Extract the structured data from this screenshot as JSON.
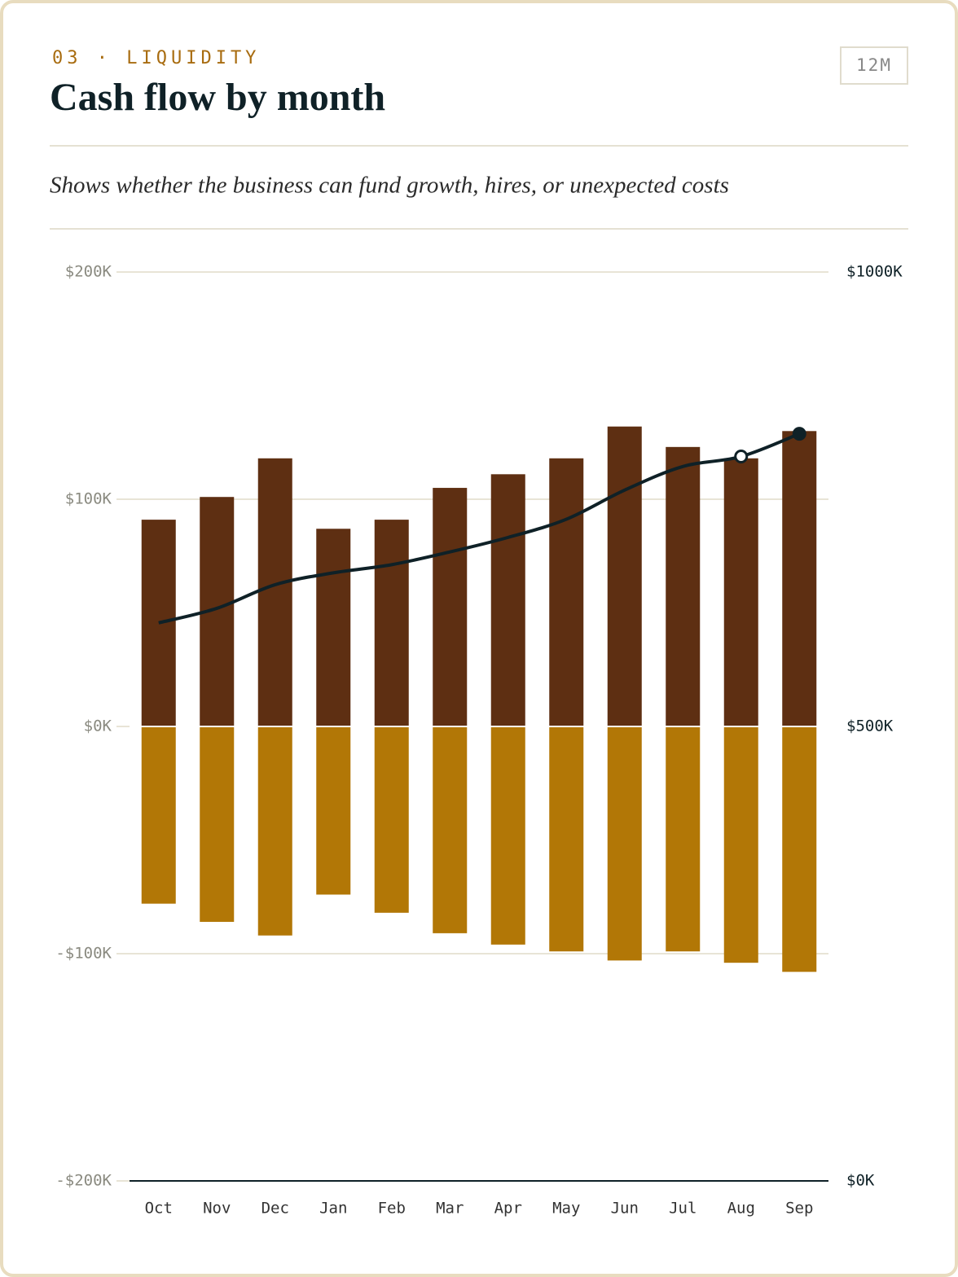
{
  "chart_data": {
    "type": "bar",
    "eyebrow": "03 · LIQUIDITY",
    "title": "Cash flow by month",
    "badge": "12M",
    "subtitle": "Shows whether the business can fund growth, hires, or unexpected costs",
    "categories": [
      "Oct",
      "Nov",
      "Dec",
      "Jan",
      "Feb",
      "Mar",
      "Apr",
      "May",
      "Jun",
      "Jul",
      "Aug",
      "Sep"
    ],
    "series": [
      {
        "type": "bar",
        "color": "#5e2f12",
        "values": [
          91,
          101,
          118,
          87,
          91,
          105,
          111,
          118,
          132,
          123,
          118,
          130
        ]
      },
      {
        "type": "bar",
        "color": "#b27706",
        "values": [
          -78,
          -86,
          -92,
          -74,
          -82,
          -91,
          -96,
          -99,
          -103,
          -99,
          -104,
          -108
        ]
      },
      {
        "type": "line",
        "axis": "y2",
        "color": "#0f2127",
        "values": [
          614,
          630,
          656,
          669,
          678,
          692,
          708,
          728,
          760,
          786,
          797,
          822
        ]
      }
    ],
    "ylim": [
      -200,
      200
    ],
    "yticks": [
      {
        "value": -200,
        "label": "-$200K"
      },
      {
        "value": -100,
        "label": "-$100K"
      },
      {
        "value": 0,
        "label": "$0K"
      },
      {
        "value": 100,
        "label": "$100K"
      },
      {
        "value": 200,
        "label": "$200K"
      }
    ],
    "y2lim": [
      0,
      1000
    ],
    "y2ticks": [
      {
        "value": 0,
        "label": "$0K"
      },
      {
        "value": 500,
        "label": "$500K"
      },
      {
        "value": 1000,
        "label": "$1000K"
      }
    ],
    "grid": true
  }
}
